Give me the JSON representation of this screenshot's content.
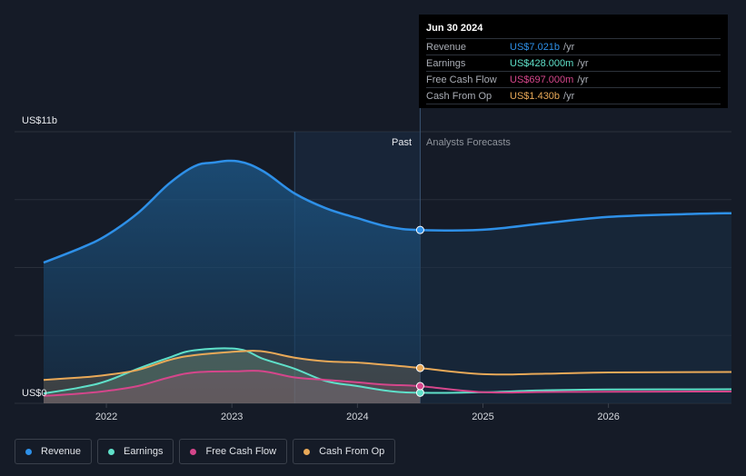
{
  "chart_data": {
    "type": "area",
    "y_axis": {
      "top_label": "US$11b",
      "bottom_label": "US$0",
      "ylim": [
        0,
        11000
      ]
    },
    "x_axis": {
      "ticks": [
        "2022",
        "2023",
        "2024",
        "2025",
        "2026"
      ],
      "xlim": [
        2021.5,
        2026.98
      ]
    },
    "regions": {
      "past_label": "Past",
      "forecast_label": "Analysts Forecasts",
      "divider_x": 2024.5,
      "past_shade_start": 2023.5
    },
    "series": [
      {
        "name": "Revenue",
        "color": "#2e90e8",
        "points": [
          [
            2021.5,
            5700
          ],
          [
            2021.8,
            6300
          ],
          [
            2022.0,
            6800
          ],
          [
            2022.25,
            7700
          ],
          [
            2022.5,
            8900
          ],
          [
            2022.7,
            9600
          ],
          [
            2022.85,
            9750
          ],
          [
            2023.05,
            9800
          ],
          [
            2023.25,
            9400
          ],
          [
            2023.5,
            8500
          ],
          [
            2023.75,
            7900
          ],
          [
            2024.0,
            7500
          ],
          [
            2024.25,
            7150
          ],
          [
            2024.5,
            7021
          ],
          [
            2025.0,
            7030
          ],
          [
            2025.5,
            7300
          ],
          [
            2026.0,
            7550
          ],
          [
            2026.5,
            7650
          ],
          [
            2026.98,
            7700
          ]
        ]
      },
      {
        "name": "Earnings",
        "color": "#5fe0c9",
        "points": [
          [
            2021.5,
            400
          ],
          [
            2021.8,
            650
          ],
          [
            2022.0,
            900
          ],
          [
            2022.25,
            1400
          ],
          [
            2022.5,
            1850
          ],
          [
            2022.7,
            2150
          ],
          [
            2023.05,
            2200
          ],
          [
            2023.25,
            1800
          ],
          [
            2023.5,
            1400
          ],
          [
            2023.75,
            900
          ],
          [
            2024.0,
            700
          ],
          [
            2024.25,
            500
          ],
          [
            2024.5,
            428
          ],
          [
            2025.0,
            450
          ],
          [
            2025.5,
            530
          ],
          [
            2026.0,
            560
          ],
          [
            2026.98,
            570
          ]
        ]
      },
      {
        "name": "Free Cash Flow",
        "color": "#d5468b",
        "points": [
          [
            2021.5,
            300
          ],
          [
            2021.8,
            400
          ],
          [
            2022.0,
            500
          ],
          [
            2022.25,
            700
          ],
          [
            2022.5,
            1050
          ],
          [
            2022.7,
            1250
          ],
          [
            2023.05,
            1300
          ],
          [
            2023.25,
            1300
          ],
          [
            2023.5,
            1050
          ],
          [
            2023.75,
            950
          ],
          [
            2024.0,
            850
          ],
          [
            2024.25,
            750
          ],
          [
            2024.5,
            697
          ],
          [
            2025.0,
            450
          ],
          [
            2025.5,
            460
          ],
          [
            2026.0,
            470
          ],
          [
            2026.98,
            480
          ]
        ]
      },
      {
        "name": "Cash From Op",
        "color": "#e9a958",
        "points": [
          [
            2021.5,
            950
          ],
          [
            2021.8,
            1050
          ],
          [
            2022.0,
            1150
          ],
          [
            2022.25,
            1350
          ],
          [
            2022.5,
            1750
          ],
          [
            2022.7,
            1950
          ],
          [
            2023.05,
            2100
          ],
          [
            2023.25,
            2100
          ],
          [
            2023.5,
            1850
          ],
          [
            2023.75,
            1700
          ],
          [
            2024.0,
            1650
          ],
          [
            2024.25,
            1550
          ],
          [
            2024.5,
            1430
          ],
          [
            2025.0,
            1180
          ],
          [
            2025.5,
            1200
          ],
          [
            2026.0,
            1250
          ],
          [
            2026.98,
            1270
          ]
        ]
      }
    ],
    "highlight_x": 2024.5,
    "grid": true,
    "legend_position": "bottom-left"
  },
  "tooltip": {
    "date": "Jun 30 2024",
    "rows": [
      {
        "name": "Revenue",
        "value": "US$7.021b",
        "unit": "/yr",
        "color": "#2e90e8"
      },
      {
        "name": "Earnings",
        "value": "US$428.000m",
        "unit": "/yr",
        "color": "#5fe0c9"
      },
      {
        "name": "Free Cash Flow",
        "value": "US$697.000m",
        "unit": "/yr",
        "color": "#d5468b"
      },
      {
        "name": "Cash From Op",
        "value": "US$1.430b",
        "unit": "/yr",
        "color": "#e9a958"
      }
    ]
  },
  "legend": [
    {
      "label": "Revenue",
      "color": "#2e90e8"
    },
    {
      "label": "Earnings",
      "color": "#5fe0c9"
    },
    {
      "label": "Free Cash Flow",
      "color": "#d5468b"
    },
    {
      "label": "Cash From Op",
      "color": "#e9a958"
    }
  ]
}
